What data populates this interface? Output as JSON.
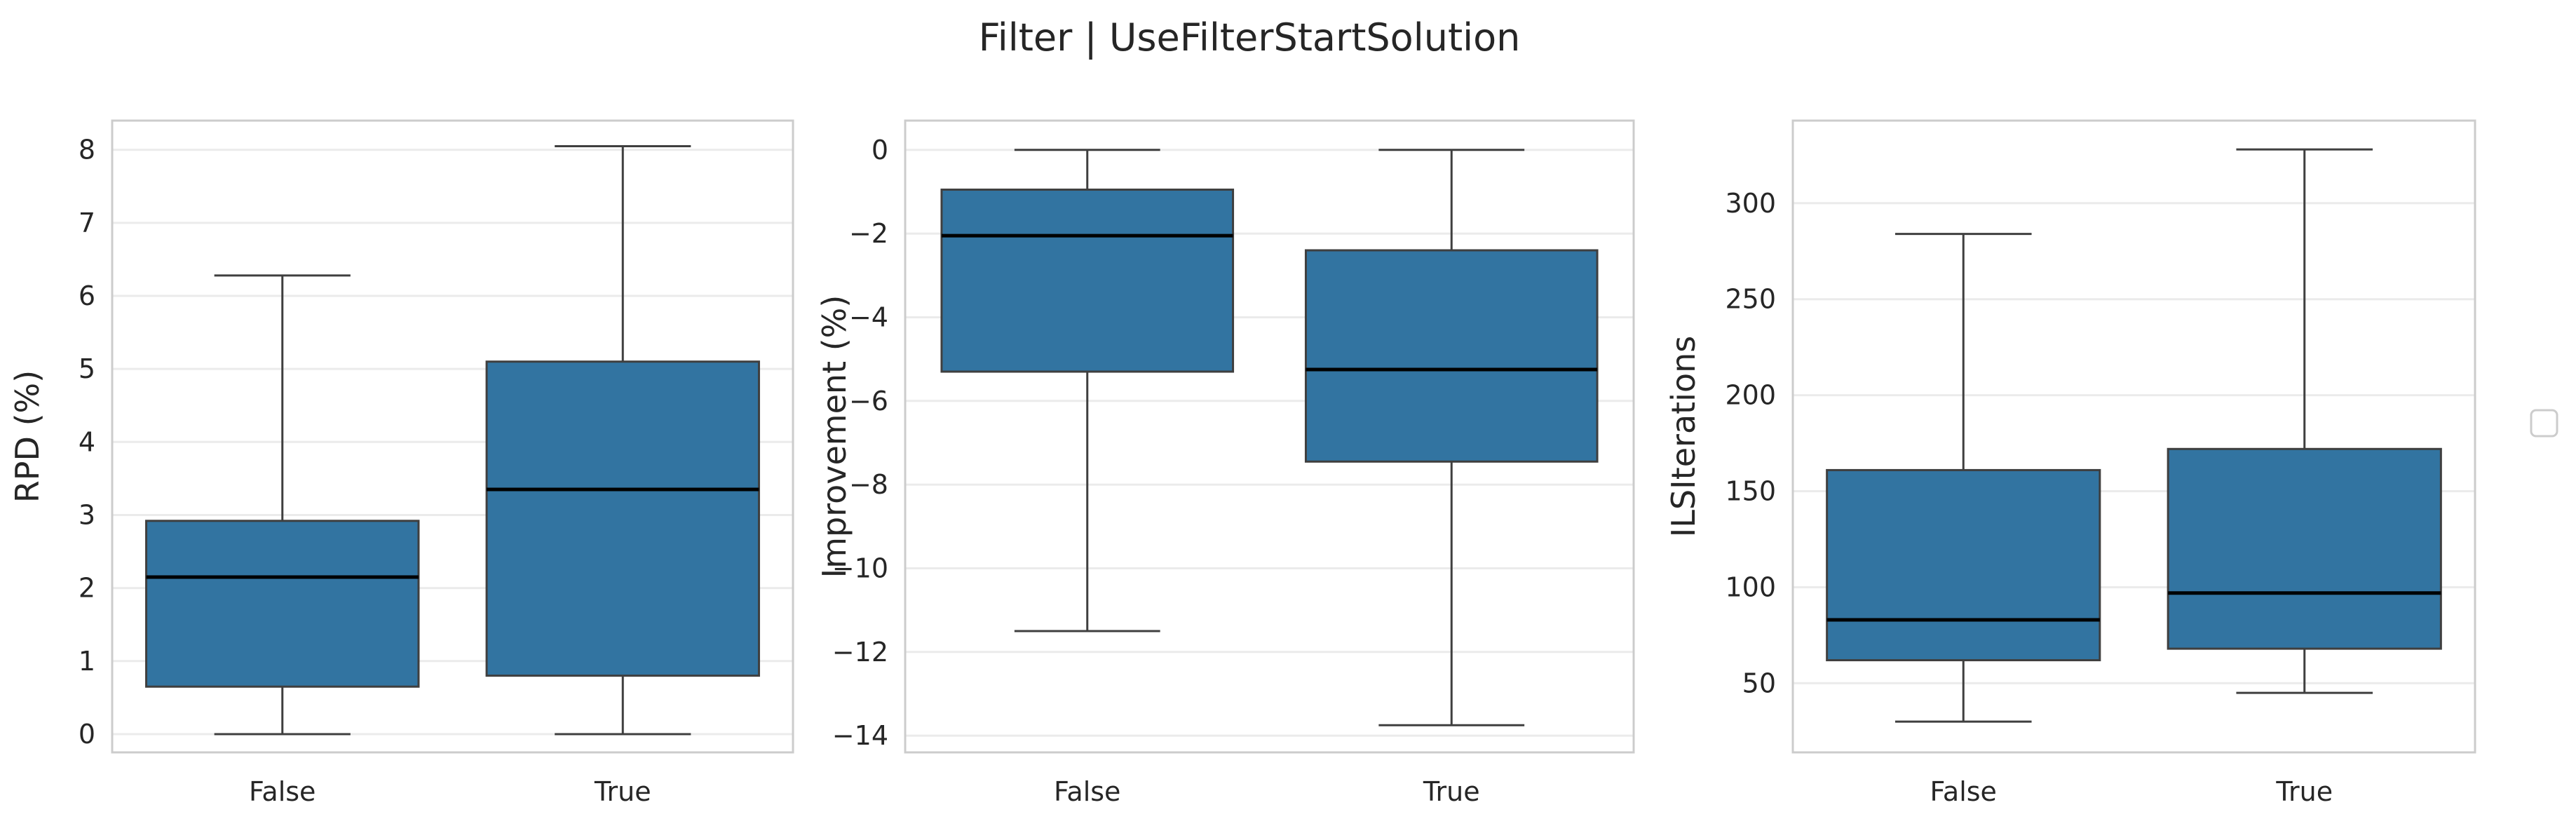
{
  "suptitle": "Filter | UseFilterStartSolution",
  "chart_data": [
    {
      "type": "box",
      "title": "",
      "xlabel": "",
      "ylabel": "RPD (%)",
      "ylim": [
        -0.25,
        8.4
      ],
      "yticks": [
        0,
        1,
        2,
        3,
        4,
        5,
        6,
        7,
        8
      ],
      "ytick_labels": [
        "0",
        "1",
        "2",
        "3",
        "4",
        "5",
        "6",
        "7",
        "8"
      ],
      "categories": [
        "False",
        "True"
      ],
      "boxes": [
        {
          "category": "False",
          "whisker_low": 0.0,
          "q1": 0.65,
          "median": 2.15,
          "q3": 2.92,
          "whisker_high": 6.28
        },
        {
          "category": "True",
          "whisker_low": 0.0,
          "q1": 0.8,
          "median": 3.35,
          "q3": 5.1,
          "whisker_high": 8.05
        }
      ],
      "grid": true,
      "color": "#3274a1"
    },
    {
      "type": "box",
      "title": "",
      "xlabel": "",
      "ylabel": "Improvement (%)",
      "ylim": [
        -14.4,
        0.7
      ],
      "yticks": [
        0,
        -2,
        -4,
        -6,
        -8,
        -10,
        -12,
        -14
      ],
      "ytick_labels": [
        "0",
        "−2",
        "−4",
        "−6",
        "−8",
        "−10",
        "−12",
        "−14"
      ],
      "categories": [
        "False",
        "True"
      ],
      "boxes": [
        {
          "category": "False",
          "whisker_low": -11.5,
          "q1": -5.3,
          "median": -2.05,
          "q3": -0.95,
          "whisker_high": 0.0
        },
        {
          "category": "True",
          "whisker_low": -13.75,
          "q1": -7.45,
          "median": -5.25,
          "q3": -2.4,
          "whisker_high": 0.0
        }
      ],
      "grid": true,
      "color": "#3274a1"
    },
    {
      "type": "box",
      "title": "",
      "xlabel": "",
      "ylabel": "ILSIterations",
      "ylim": [
        14,
        343
      ],
      "yticks": [
        50,
        100,
        150,
        200,
        250,
        300
      ],
      "ytick_labels": [
        "50",
        "100",
        "150",
        "200",
        "250",
        "300"
      ],
      "categories": [
        "False",
        "True"
      ],
      "boxes": [
        {
          "category": "False",
          "whisker_low": 30,
          "q1": 62,
          "median": 83,
          "q3": 161,
          "whisker_high": 284
        },
        {
          "category": "True",
          "whisker_low": 45,
          "q1": 68,
          "median": 97,
          "q3": 172,
          "whisker_high": 328
        }
      ],
      "grid": true,
      "color": "#3274a1"
    }
  ],
  "legend": {
    "entries": [],
    "placement": "right, outside plot area, vertically centered"
  }
}
